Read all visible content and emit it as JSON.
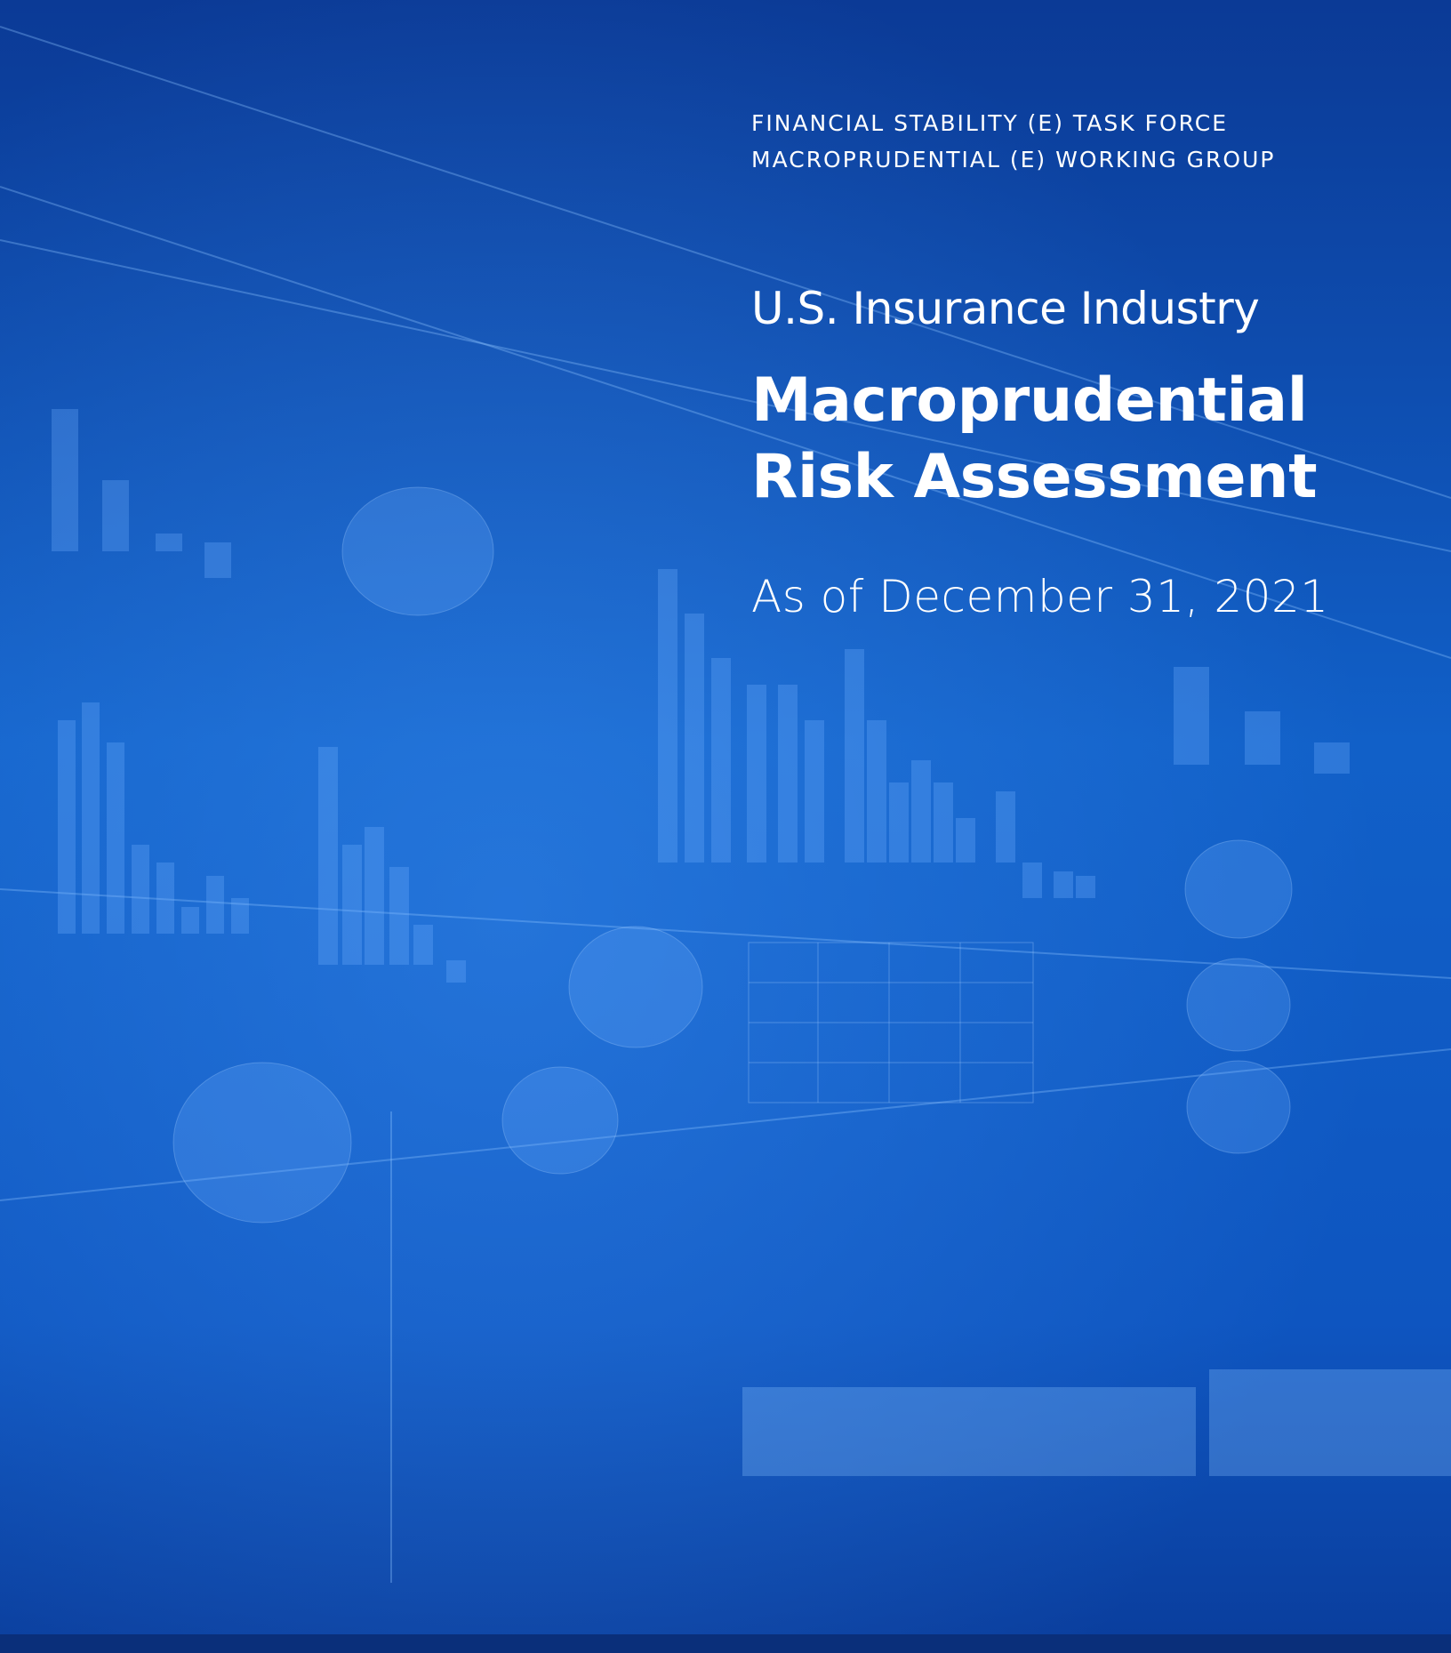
{
  "header": {
    "lines": [
      "FINANCIAL STABILITY (E) TASK FORCE",
      "MACROPRUDENTIAL (E) WORKING GROUP"
    ]
  },
  "title": {
    "kicker": "U.S. Insurance Industry",
    "lines": [
      "Macroprudential",
      "Risk Assessment"
    ]
  },
  "date": "As of December 31, 2021"
}
